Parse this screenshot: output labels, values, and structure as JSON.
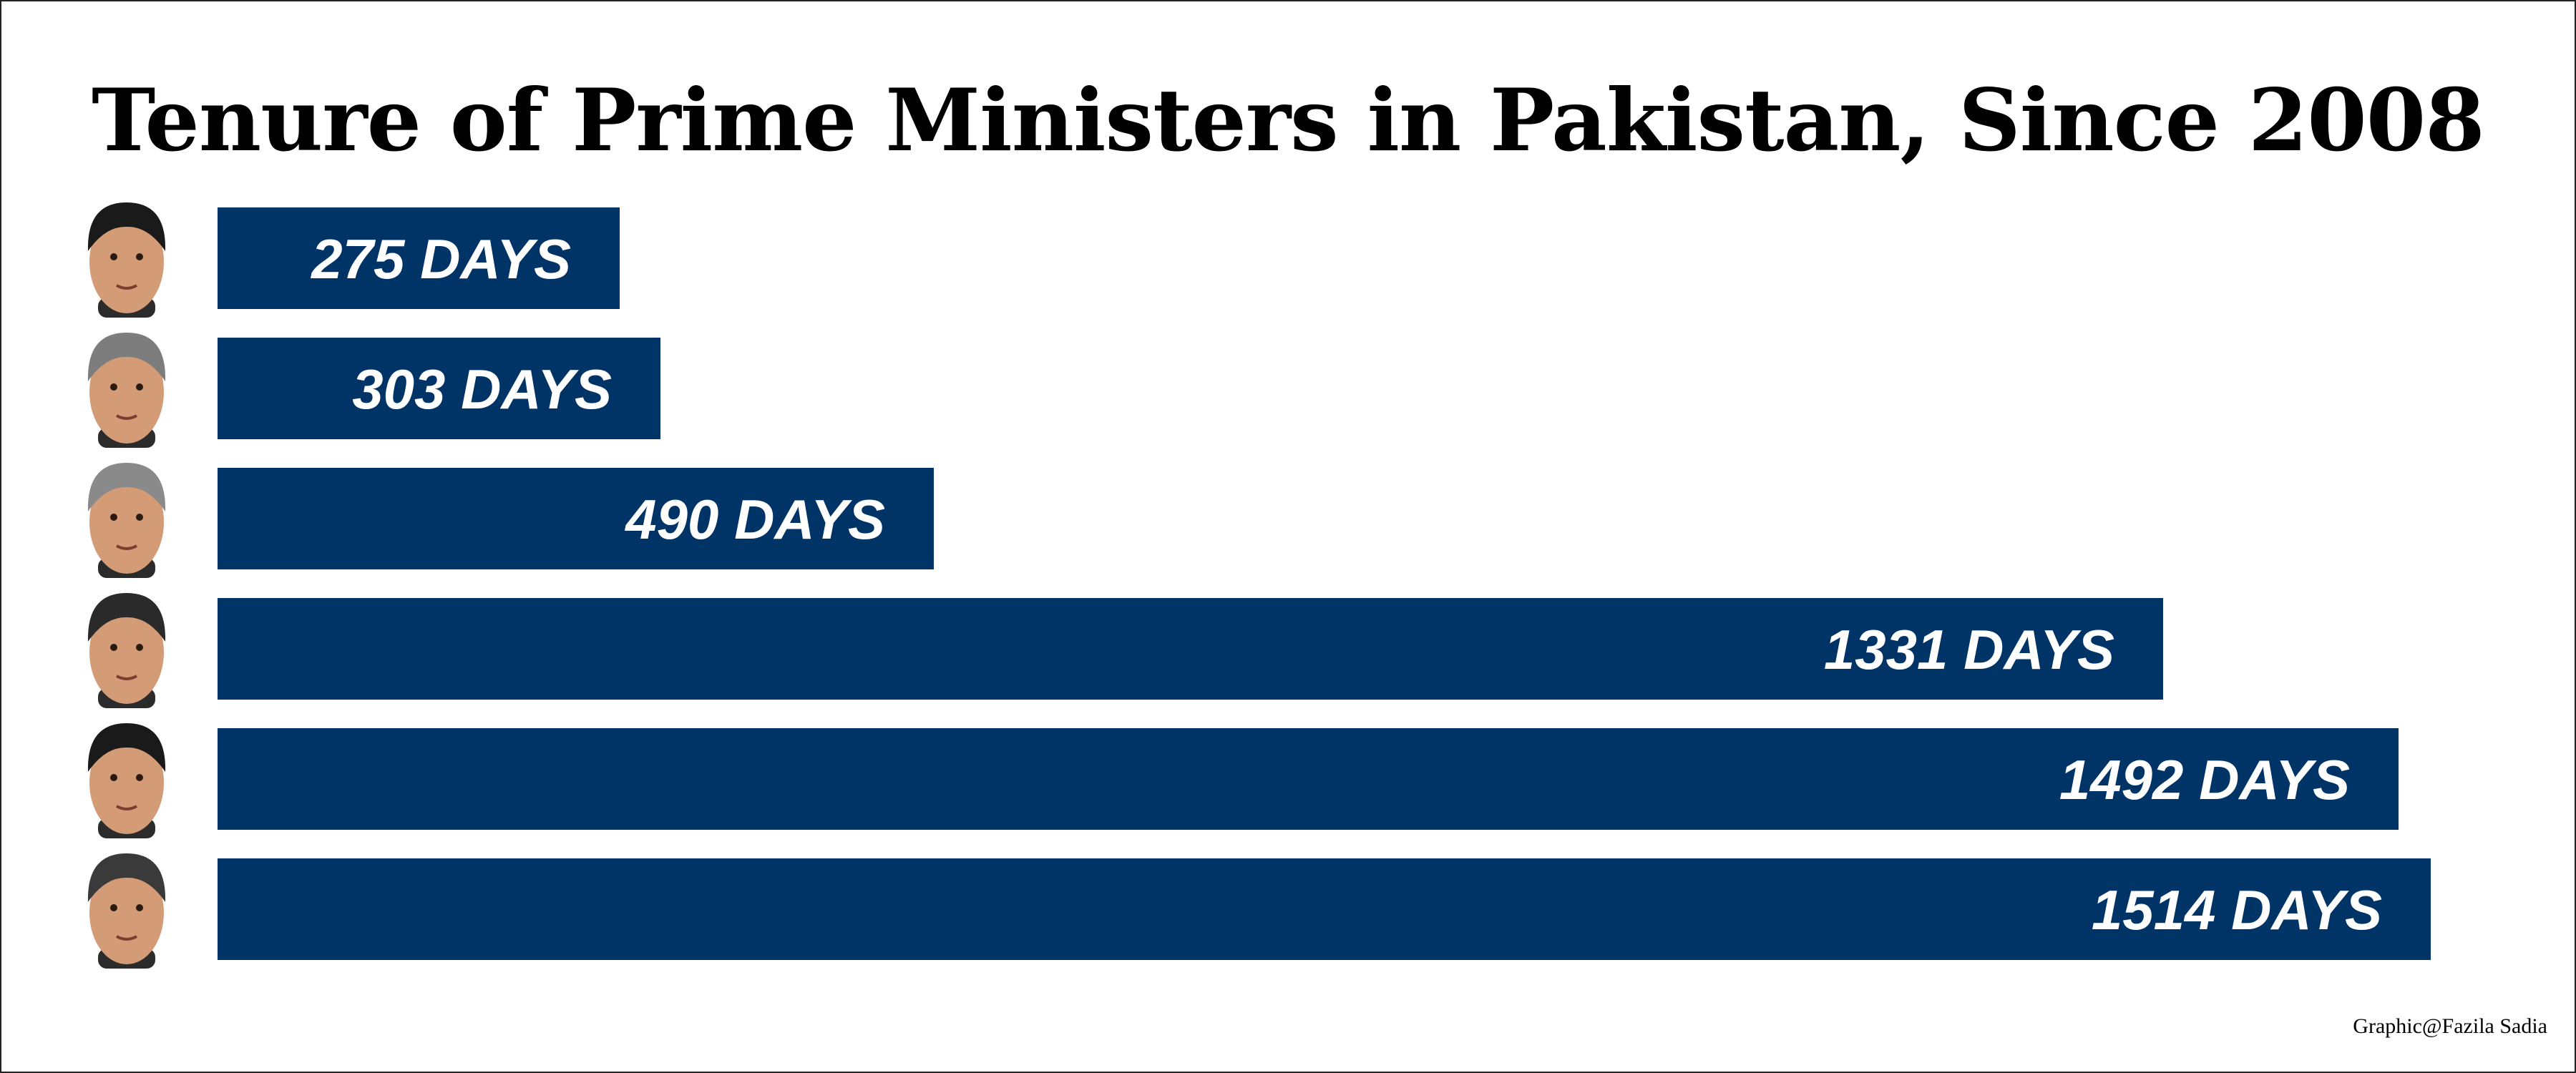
{
  "chart_data": {
    "type": "bar",
    "orientation": "horizontal",
    "title": "Tenure of Prime Ministers in Pakistan, Since 2008",
    "categories": [
      "",
      "",
      "",
      "",
      "",
      ""
    ],
    "values": [
      275,
      303,
      490,
      1331,
      1492,
      1514
    ],
    "labels": [
      "275 DAYS",
      "303 DAYS",
      "490 DAYS",
      "1331 DAYS",
      "1492 DAYS",
      "1514 DAYS"
    ],
    "xlim": [
      0,
      1514
    ],
    "grid": false,
    "legend": "none"
  },
  "credit": "Graphic@Fazila Sadia",
  "colors": {
    "bar": "#003366",
    "label": "#ffffff",
    "background": "#ffffff"
  },
  "icons": [
    "portrait-photo",
    "portrait-photo",
    "portrait-photo",
    "portrait-photo",
    "portrait-photo",
    "portrait-photo"
  ]
}
